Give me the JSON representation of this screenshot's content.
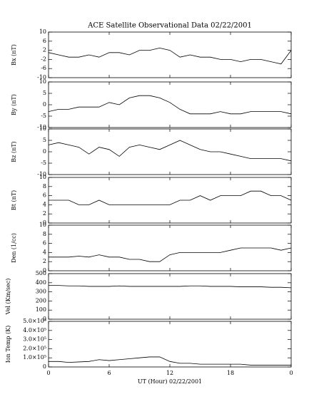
{
  "chart_data": [
    {
      "type": "line",
      "title": "ACE Satellite Observational Data   02/22/2001",
      "y_label": "Bx (nT)",
      "x": [
        0,
        1,
        2,
        3,
        4,
        5,
        6,
        7,
        8,
        9,
        10,
        11,
        12,
        13,
        14,
        15,
        16,
        17,
        18,
        19,
        20,
        21,
        22,
        23,
        24
      ],
      "values": [
        1,
        0,
        -1,
        -1,
        0,
        -1,
        1,
        1,
        0,
        2,
        2,
        3,
        2,
        -1,
        0,
        -1,
        -1,
        -2,
        -2,
        -3,
        -2,
        -2,
        -3,
        -4,
        2
      ],
      "xlim": [
        0,
        24
      ],
      "xticks": [
        0,
        6,
        12,
        18,
        {
          "value": 24,
          "label": "0"
        }
      ],
      "ylim": [
        -10,
        10
      ],
      "yticks": [
        10,
        6,
        2,
        -2,
        -6,
        -10
      ],
      "color": "#000000"
    },
    {
      "type": "line",
      "y_label": "By (nT)",
      "x": [
        0,
        1,
        2,
        3,
        4,
        5,
        6,
        7,
        8,
        9,
        10,
        11,
        12,
        13,
        14,
        15,
        16,
        17,
        18,
        19,
        20,
        21,
        22,
        23,
        24
      ],
      "values": [
        -3,
        -2,
        -2,
        -1,
        -1,
        -1,
        1,
        0,
        3,
        4,
        4,
        3,
        1,
        -2,
        -4,
        -4,
        -4,
        -3,
        -4,
        -4,
        -3,
        -3,
        -3,
        -3,
        -4
      ],
      "xlim": [
        0,
        24
      ],
      "xticks": [
        0,
        6,
        12,
        18,
        {
          "value": 24,
          "label": "0"
        }
      ],
      "ylim": [
        -10,
        10
      ],
      "yticks": [
        10,
        5,
        0,
        -5,
        -10
      ],
      "color": "#000000"
    },
    {
      "type": "line",
      "y_label": "Bz (nT)",
      "x": [
        0,
        1,
        2,
        3,
        4,
        5,
        6,
        7,
        8,
        9,
        10,
        11,
        12,
        13,
        14,
        15,
        16,
        17,
        18,
        19,
        20,
        21,
        22,
        23,
        24
      ],
      "values": [
        3,
        4,
        3,
        2,
        -1,
        2,
        1,
        -2,
        2,
        3,
        2,
        1,
        3,
        5,
        3,
        1,
        0,
        0,
        -1,
        -2,
        -3,
        -3,
        -3,
        -3,
        -4
      ],
      "xlim": [
        0,
        24
      ],
      "xticks": [
        0,
        6,
        12,
        18,
        {
          "value": 24,
          "label": "0"
        }
      ],
      "ylim": [
        -10,
        10
      ],
      "yticks": [
        10,
        5,
        0,
        -5,
        -10
      ],
      "color": "#000000"
    },
    {
      "type": "line",
      "y_label": "Bt (nT)",
      "x": [
        0,
        1,
        2,
        3,
        4,
        5,
        6,
        7,
        8,
        9,
        10,
        11,
        12,
        13,
        14,
        15,
        16,
        17,
        18,
        19,
        20,
        21,
        22,
        23,
        24
      ],
      "values": [
        5,
        5,
        5,
        4,
        4,
        5,
        4,
        4,
        4,
        4,
        4,
        4,
        4,
        5,
        5,
        6,
        5,
        6,
        6,
        6,
        7,
        7,
        6,
        6,
        5
      ],
      "xlim": [
        0,
        24
      ],
      "xticks": [
        0,
        6,
        12,
        18,
        {
          "value": 24,
          "label": "0"
        }
      ],
      "ylim": [
        0,
        10
      ],
      "yticks": [
        10,
        8,
        6,
        4,
        2,
        0
      ],
      "color": "#000000"
    },
    {
      "type": "line",
      "y_label": "Den (1/cc)",
      "x": [
        0,
        1,
        2,
        3,
        4,
        5,
        6,
        7,
        8,
        9,
        10,
        11,
        12,
        13,
        14,
        15,
        16,
        17,
        18,
        19,
        20,
        21,
        22,
        23,
        24
      ],
      "values": [
        3,
        3,
        3,
        3.2,
        3,
        3.5,
        3,
        3,
        2.5,
        2.5,
        2,
        2,
        3.5,
        4,
        4,
        4,
        4,
        4,
        4.5,
        5,
        5,
        5,
        5,
        4.5,
        5
      ],
      "xlim": [
        0,
        24
      ],
      "xticks": [
        0,
        6,
        12,
        18,
        {
          "value": 24,
          "label": "0"
        }
      ],
      "ylim": [
        0,
        10
      ],
      "yticks": [
        10,
        8,
        6,
        4,
        2,
        0
      ],
      "color": "#000000"
    },
    {
      "type": "line",
      "y_label": "Vel (Km/sec)",
      "x": [
        0,
        1,
        2,
        3,
        4,
        5,
        6,
        7,
        8,
        9,
        10,
        11,
        12,
        13,
        14,
        15,
        16,
        17,
        18,
        19,
        20,
        21,
        22,
        23,
        24
      ],
      "values": [
        370,
        370,
        365,
        365,
        360,
        360,
        360,
        365,
        360,
        360,
        360,
        360,
        360,
        360,
        365,
        365,
        360,
        360,
        360,
        355,
        355,
        355,
        350,
        350,
        345
      ],
      "xlim": [
        0,
        24
      ],
      "xticks": [
        0,
        6,
        12,
        18,
        {
          "value": 24,
          "label": "0"
        }
      ],
      "ylim": [
        0,
        500
      ],
      "yticks": [
        500,
        400,
        300,
        200,
        100,
        0
      ],
      "color": "#000000"
    },
    {
      "type": "line",
      "y_label": "Ion Temp (K)",
      "x_label": "UT (Hour)  02/22/2001",
      "x": [
        0,
        1,
        2,
        3,
        4,
        5,
        6,
        7,
        8,
        9,
        10,
        11,
        12,
        13,
        14,
        15,
        16,
        17,
        18,
        19,
        20,
        21,
        22,
        23,
        24
      ],
      "values": [
        60000,
        60000,
        50000,
        55000,
        60000,
        80000,
        70000,
        80000,
        90000,
        100000,
        110000,
        110000,
        60000,
        40000,
        40000,
        30000,
        30000,
        30000,
        30000,
        30000,
        20000,
        20000,
        20000,
        20000,
        20000
      ],
      "xlim": [
        0,
        24
      ],
      "xticks": [
        0,
        6,
        12,
        18,
        {
          "value": 24,
          "label": "0"
        }
      ],
      "ylim": [
        0,
        500000
      ],
      "yticks": [
        {
          "value": 500000,
          "label": "5.0×10⁵"
        },
        {
          "value": 400000,
          "label": "4.0×10⁵"
        },
        {
          "value": 300000,
          "label": "3.0×10⁵"
        },
        {
          "value": 200000,
          "label": "2.0×10⁵"
        },
        {
          "value": 100000,
          "label": "1.0×10⁵"
        },
        0
      ],
      "color": "#000000"
    }
  ]
}
